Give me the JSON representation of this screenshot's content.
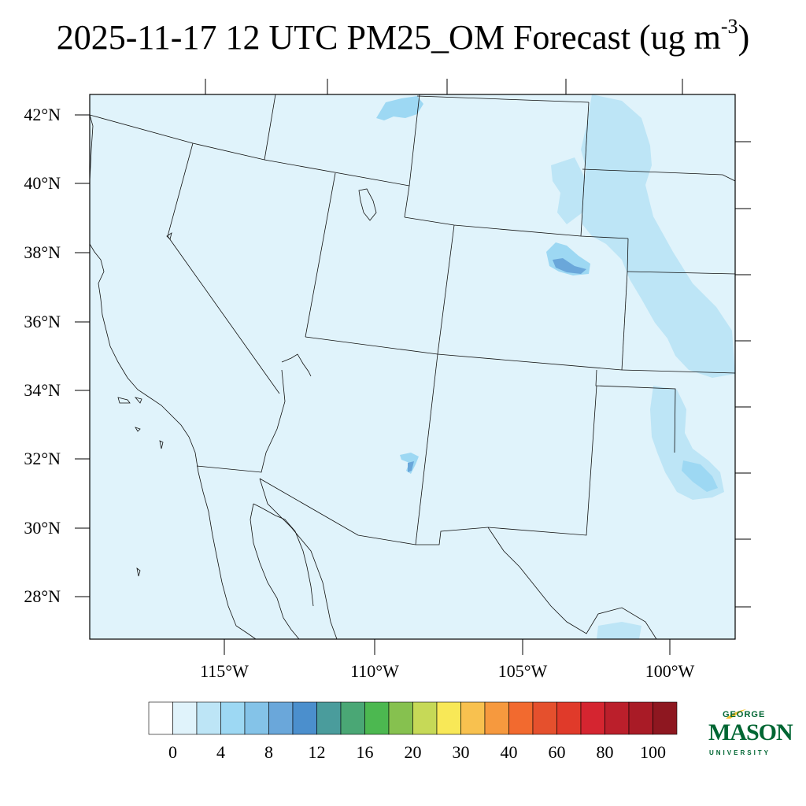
{
  "title": {
    "main": "2025-11-17 12 UTC PM25_OM Forecast (ug m",
    "exp": "-3",
    "close": ")"
  },
  "lat_labels": [
    "42°N",
    "40°N",
    "38°N",
    "36°N",
    "34°N",
    "32°N",
    "30°N",
    "28°N"
  ],
  "lon_labels": [
    "115°W",
    "110°W",
    "105°W",
    "100°W"
  ],
  "colorbar": {
    "colors": [
      "#ffffff",
      "#e0f3fb",
      "#bde5f6",
      "#9dd8f3",
      "#84c3e8",
      "#6aa7da",
      "#4b8fcd",
      "#4a9c9c",
      "#4aa775",
      "#4cb850",
      "#86c14f",
      "#c6d957",
      "#f8e857",
      "#f8c14f",
      "#f6993e",
      "#f26a2f",
      "#e5502d",
      "#e03a2a",
      "#d52530",
      "#bb1f2b",
      "#a91b26",
      "#8e1720"
    ],
    "labels": [
      "0",
      "4",
      "8",
      "12",
      "16",
      "20",
      "30",
      "40",
      "60",
      "80",
      "100"
    ]
  },
  "map": {
    "background": "#e0f3fb",
    "plume_light": "#bde5f6",
    "plume_mid": "#9dd8f3",
    "plume_dark": "#6aa7da"
  },
  "logo": {
    "george": "GEORGE",
    "mason": "MASON",
    "university": "UNIVERSITY",
    "color": "#006633"
  }
}
